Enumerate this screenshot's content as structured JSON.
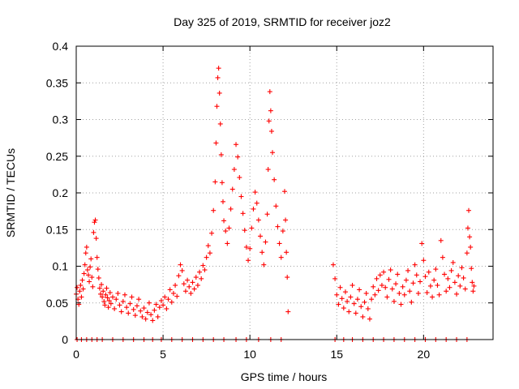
{
  "chart_data": {
    "type": "scatter",
    "title": "Day 325 of 2019, SRMTID for receiver joz2",
    "xlabel": "GPS time / hours",
    "ylabel": "SRMTID / TECUs",
    "xlim": [
      0,
      24
    ],
    "ylim": [
      0,
      0.4
    ],
    "xticks": [
      0,
      5,
      10,
      15,
      20
    ],
    "xtick_labels": [
      "0",
      "5",
      "10",
      "15",
      "20"
    ],
    "yticks": [
      0,
      0.05,
      0.1,
      0.15,
      0.2,
      0.25,
      0.3,
      0.35,
      0.4
    ],
    "ytick_labels": [
      "0",
      "0.05",
      "0.1",
      "0.15",
      "0.2",
      "0.25",
      "0.3",
      "0.35",
      "0.4"
    ],
    "grid": true,
    "marker": "+",
    "color": "#ff0000",
    "series": [
      {
        "name": "SRMTID",
        "points": [
          [
            0.0,
            0.062
          ],
          [
            0.05,
            0.071
          ],
          [
            0.1,
            0.055
          ],
          [
            0.15,
            0.048
          ],
          [
            0.2,
            0.066
          ],
          [
            0.25,
            0.074
          ],
          [
            0.3,
            0.058
          ],
          [
            0.35,
            0.081
          ],
          [
            0.4,
            0.069
          ],
          [
            0.45,
            0.09
          ],
          [
            0.5,
            0.102
          ],
          [
            0.55,
            0.118
          ],
          [
            0.6,
            0.126
          ],
          [
            0.65,
            0.095
          ],
          [
            0.7,
            0.088
          ],
          [
            0.75,
            0.079
          ],
          [
            0.8,
            0.099
          ],
          [
            0.85,
            0.11
          ],
          [
            0.9,
            0.085
          ],
          [
            0.95,
            0.072
          ],
          [
            1.0,
            0.146
          ],
          [
            1.05,
            0.16
          ],
          [
            1.1,
            0.163
          ],
          [
            1.15,
            0.138
          ],
          [
            1.2,
            0.112
          ],
          [
            1.25,
            0.096
          ],
          [
            1.3,
            0.084
          ],
          [
            1.35,
            0.07
          ],
          [
            1.4,
            0.062
          ],
          [
            1.45,
            0.075
          ],
          [
            1.5,
            0.058
          ],
          [
            1.55,
            0.066
          ],
          [
            1.6,
            0.052
          ],
          [
            1.65,
            0.047
          ],
          [
            1.7,
            0.061
          ],
          [
            1.75,
            0.07
          ],
          [
            1.8,
            0.057
          ],
          [
            1.85,
            0.044
          ],
          [
            1.9,
            0.053
          ],
          [
            1.95,
            0.064
          ],
          [
            2.0,
            0.049
          ],
          [
            2.1,
            0.058
          ],
          [
            2.2,
            0.042
          ],
          [
            2.3,
            0.055
          ],
          [
            2.4,
            0.063
          ],
          [
            2.5,
            0.047
          ],
          [
            2.6,
            0.038
          ],
          [
            2.7,
            0.052
          ],
          [
            2.8,
            0.061
          ],
          [
            2.9,
            0.044
          ],
          [
            3.0,
            0.036
          ],
          [
            3.1,
            0.049
          ],
          [
            3.2,
            0.058
          ],
          [
            3.3,
            0.041
          ],
          [
            3.4,
            0.033
          ],
          [
            3.5,
            0.046
          ],
          [
            3.6,
            0.055
          ],
          [
            3.7,
            0.039
          ],
          [
            3.8,
            0.031
          ],
          [
            3.9,
            0.043
          ],
          [
            4.0,
            0.028
          ],
          [
            4.1,
            0.037
          ],
          [
            4.2,
            0.05
          ],
          [
            4.3,
            0.034
          ],
          [
            4.4,
            0.026
          ],
          [
            4.5,
            0.04
          ],
          [
            4.6,
            0.048
          ],
          [
            4.7,
            0.031
          ],
          [
            4.8,
            0.044
          ],
          [
            4.9,
            0.053
          ],
          [
            5.0,
            0.047
          ],
          [
            5.1,
            0.058
          ],
          [
            5.2,
            0.042
          ],
          [
            5.3,
            0.055
          ],
          [
            5.4,
            0.068
          ],
          [
            5.5,
            0.051
          ],
          [
            5.6,
            0.063
          ],
          [
            5.7,
            0.074
          ],
          [
            5.8,
            0.059
          ],
          [
            5.9,
            0.087
          ],
          [
            6.0,
            0.102
          ],
          [
            6.1,
            0.094
          ],
          [
            6.2,
            0.076
          ],
          [
            6.3,
            0.066
          ],
          [
            6.4,
            0.081
          ],
          [
            6.5,
            0.072
          ],
          [
            6.6,
            0.063
          ],
          [
            6.7,
            0.078
          ],
          [
            6.8,
            0.069
          ],
          [
            6.9,
            0.085
          ],
          [
            7.0,
            0.074
          ],
          [
            7.1,
            0.092
          ],
          [
            7.2,
            0.083
          ],
          [
            7.3,
            0.101
          ],
          [
            7.4,
            0.095
          ],
          [
            7.5,
            0.112
          ],
          [
            7.6,
            0.128
          ],
          [
            7.7,
            0.118
          ],
          [
            7.8,
            0.145
          ],
          [
            7.9,
            0.176
          ],
          [
            8.0,
            0.215
          ],
          [
            8.05,
            0.268
          ],
          [
            8.1,
            0.318
          ],
          [
            8.15,
            0.357
          ],
          [
            8.2,
            0.37
          ],
          [
            8.25,
            0.336
          ],
          [
            8.3,
            0.294
          ],
          [
            8.35,
            0.252
          ],
          [
            8.4,
            0.214
          ],
          [
            8.45,
            0.188
          ],
          [
            8.5,
            0.162
          ],
          [
            8.6,
            0.148
          ],
          [
            8.7,
            0.131
          ],
          [
            8.8,
            0.152
          ],
          [
            8.9,
            0.178
          ],
          [
            9.0,
            0.205
          ],
          [
            9.1,
            0.232
          ],
          [
            9.2,
            0.266
          ],
          [
            9.3,
            0.249
          ],
          [
            9.4,
            0.221
          ],
          [
            9.5,
            0.195
          ],
          [
            9.6,
            0.172
          ],
          [
            9.7,
            0.149
          ],
          [
            9.8,
            0.126
          ],
          [
            9.9,
            0.108
          ],
          [
            10.0,
            0.124
          ],
          [
            10.1,
            0.152
          ],
          [
            10.2,
            0.178
          ],
          [
            10.3,
            0.201
          ],
          [
            10.4,
            0.186
          ],
          [
            10.5,
            0.163
          ],
          [
            10.6,
            0.141
          ],
          [
            10.7,
            0.119
          ],
          [
            10.8,
            0.102
          ],
          [
            10.9,
            0.133
          ],
          [
            11.0,
            0.171
          ],
          [
            11.05,
            0.232
          ],
          [
            11.1,
            0.298
          ],
          [
            11.15,
            0.338
          ],
          [
            11.2,
            0.312
          ],
          [
            11.25,
            0.284
          ],
          [
            11.3,
            0.255
          ],
          [
            11.4,
            0.218
          ],
          [
            11.5,
            0.182
          ],
          [
            11.6,
            0.154
          ],
          [
            11.7,
            0.131
          ],
          [
            11.8,
            0.112
          ],
          [
            11.9,
            0.148
          ],
          [
            12.0,
            0.202
          ],
          [
            12.05,
            0.163
          ],
          [
            12.1,
            0.119
          ],
          [
            12.15,
            0.085
          ],
          [
            12.2,
            0.038
          ],
          [
            14.8,
            0.102
          ],
          [
            14.9,
            0.083
          ],
          [
            15.0,
            0.061
          ],
          [
            15.1,
            0.048
          ],
          [
            15.2,
            0.071
          ],
          [
            15.3,
            0.056
          ],
          [
            15.4,
            0.043
          ],
          [
            15.5,
            0.065
          ],
          [
            15.6,
            0.052
          ],
          [
            15.7,
            0.038
          ],
          [
            15.8,
            0.058
          ],
          [
            15.9,
            0.074
          ],
          [
            16.0,
            0.049
          ],
          [
            16.1,
            0.036
          ],
          [
            16.2,
            0.055
          ],
          [
            16.3,
            0.068
          ],
          [
            16.4,
            0.045
          ],
          [
            16.5,
            0.031
          ],
          [
            16.6,
            0.051
          ],
          [
            16.7,
            0.063
          ],
          [
            16.8,
            0.042
          ],
          [
            16.9,
            0.028
          ],
          [
            17.0,
            0.055
          ],
          [
            17.1,
            0.072
          ],
          [
            17.2,
            0.061
          ],
          [
            17.3,
            0.083
          ],
          [
            17.4,
            0.067
          ],
          [
            17.5,
            0.088
          ],
          [
            17.6,
            0.074
          ],
          [
            17.7,
            0.092
          ],
          [
            17.8,
            0.071
          ],
          [
            17.9,
            0.058
          ],
          [
            18.0,
            0.082
          ],
          [
            18.1,
            0.095
          ],
          [
            18.2,
            0.069
          ],
          [
            18.3,
            0.052
          ],
          [
            18.4,
            0.076
          ],
          [
            18.5,
            0.089
          ],
          [
            18.6,
            0.063
          ],
          [
            18.7,
            0.048
          ],
          [
            18.8,
            0.072
          ],
          [
            18.9,
            0.061
          ],
          [
            19.0,
            0.081
          ],
          [
            19.1,
            0.094
          ],
          [
            19.2,
            0.066
          ],
          [
            19.3,
            0.051
          ],
          [
            19.4,
            0.077
          ],
          [
            19.5,
            0.102
          ],
          [
            19.6,
            0.088
          ],
          [
            19.7,
            0.063
          ],
          [
            19.8,
            0.079
          ],
          [
            19.9,
            0.131
          ],
          [
            20.0,
            0.108
          ],
          [
            20.1,
            0.086
          ],
          [
            20.2,
            0.064
          ],
          [
            20.3,
            0.092
          ],
          [
            20.4,
            0.073
          ],
          [
            20.5,
            0.058
          ],
          [
            20.6,
            0.081
          ],
          [
            20.7,
            0.096
          ],
          [
            20.8,
            0.074
          ],
          [
            20.9,
            0.061
          ],
          [
            21.0,
            0.135
          ],
          [
            21.1,
            0.112
          ],
          [
            21.2,
            0.089
          ],
          [
            21.3,
            0.066
          ],
          [
            21.4,
            0.083
          ],
          [
            21.5,
            0.071
          ],
          [
            21.6,
            0.094
          ],
          [
            21.7,
            0.105
          ],
          [
            21.8,
            0.078
          ],
          [
            21.9,
            0.062
          ],
          [
            22.0,
            0.087
          ],
          [
            22.1,
            0.073
          ],
          [
            22.2,
            0.098
          ],
          [
            22.3,
            0.084
          ],
          [
            22.4,
            0.069
          ],
          [
            22.5,
            0.118
          ],
          [
            22.55,
            0.152
          ],
          [
            22.6,
            0.176
          ],
          [
            22.65,
            0.14
          ],
          [
            22.7,
            0.126
          ],
          [
            22.75,
            0.097
          ],
          [
            22.8,
            0.078
          ],
          [
            22.85,
            0.066
          ],
          [
            22.9,
            0.073
          ]
        ],
        "zero_points": [
          0.05,
          0.3,
          0.6,
          0.9,
          1.2,
          1.5,
          2.1,
          2.7,
          3.3,
          3.9,
          4.4,
          4.9,
          5.5,
          6.1,
          6.7,
          7.3,
          7.9,
          8.5,
          9.2,
          9.8,
          10.5,
          11.2,
          11.8,
          14.9,
          15.4,
          15.9,
          16.5,
          17.1,
          17.7,
          18.3,
          18.9,
          19.5,
          20.1,
          20.7,
          21.3,
          21.9,
          22.5
        ]
      }
    ]
  }
}
